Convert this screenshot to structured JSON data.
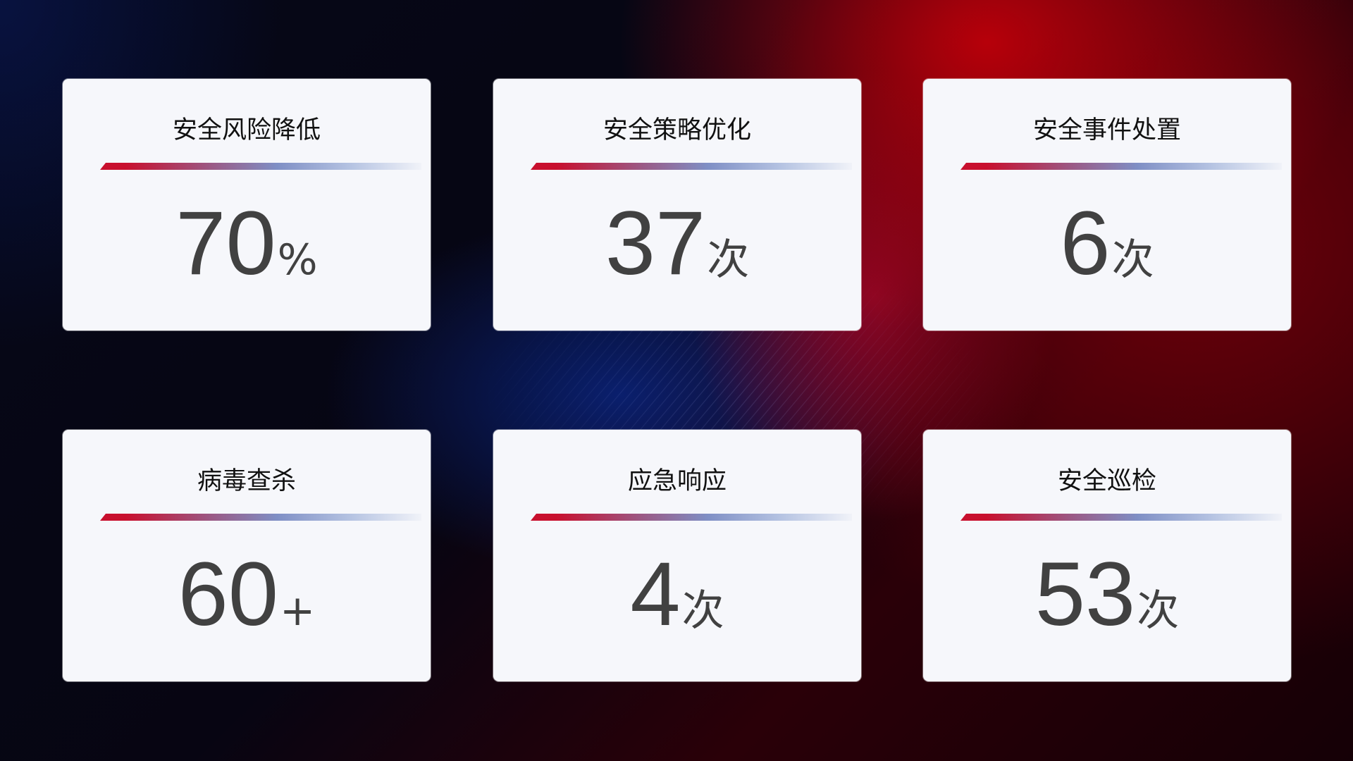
{
  "cards": [
    {
      "title": "安全风险降低",
      "value": "70",
      "unit": "%"
    },
    {
      "title": "安全策略优化",
      "value": "37",
      "unit": "次"
    },
    {
      "title": "安全事件处置",
      "value": "6",
      "unit": "次"
    },
    {
      "title": "病毒查杀",
      "value": "60",
      "unit": "+"
    },
    {
      "title": "应急响应",
      "value": "4",
      "unit": "次"
    },
    {
      "title": "安全巡检",
      "value": "53",
      "unit": "次"
    }
  ],
  "colors": {
    "accent_red": "#c8102e",
    "accent_blue": "#7f8fc5",
    "card_bg": "#f6f7fb",
    "value_text": "#414141"
  }
}
